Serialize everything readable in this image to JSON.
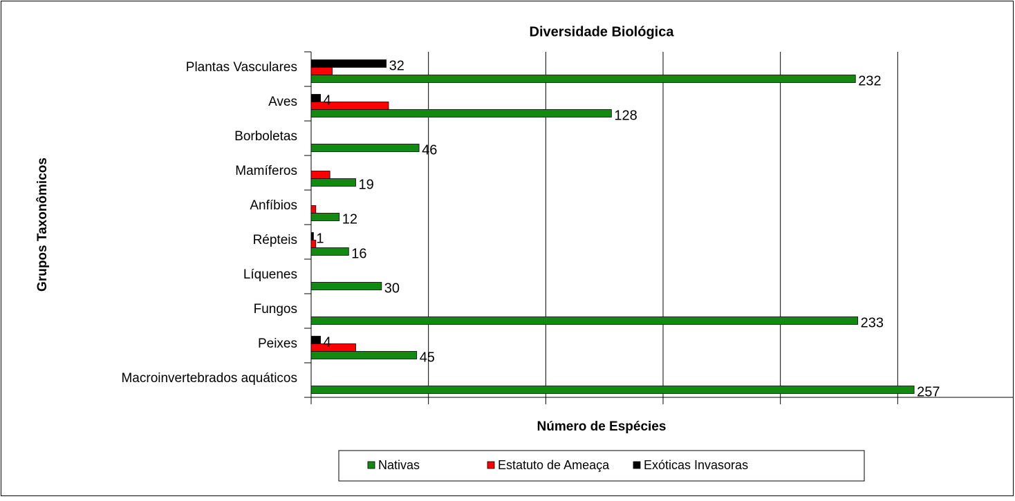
{
  "chart_data": {
    "type": "barh",
    "title": "Diversidade Biológica",
    "x_label": "Número de Espécies",
    "y_label": "Grupos Taxonômicos",
    "categories": [
      "Plantas Vasculares",
      "Aves",
      "Borboletas",
      "Mamíferos",
      "Anfíbios",
      "Répteis",
      "Líquenes",
      "Fungos",
      "Peixes",
      "Macroinvertebrados aquáticos"
    ],
    "series": [
      {
        "name": "Nativas",
        "color": "#128a12",
        "data_labels": true,
        "values": [
          232,
          128,
          46,
          19,
          12,
          16,
          30,
          233,
          45,
          257
        ]
      },
      {
        "name": "Estatuto de Ameaça",
        "color": "#ff0000",
        "data_labels": false,
        "values": [
          9,
          33,
          null,
          8,
          2,
          2,
          null,
          null,
          19,
          null
        ]
      },
      {
        "name": "Exóticas Invasoras",
        "color": "#000000",
        "data_labels": true,
        "values": [
          32,
          4,
          null,
          null,
          null,
          1,
          null,
          null,
          4,
          null
        ]
      }
    ],
    "xlim": [
      0,
      300
    ],
    "xticks": [
      0,
      50,
      100,
      150,
      200,
      250
    ],
    "grid": true,
    "legend": "bottom"
  }
}
